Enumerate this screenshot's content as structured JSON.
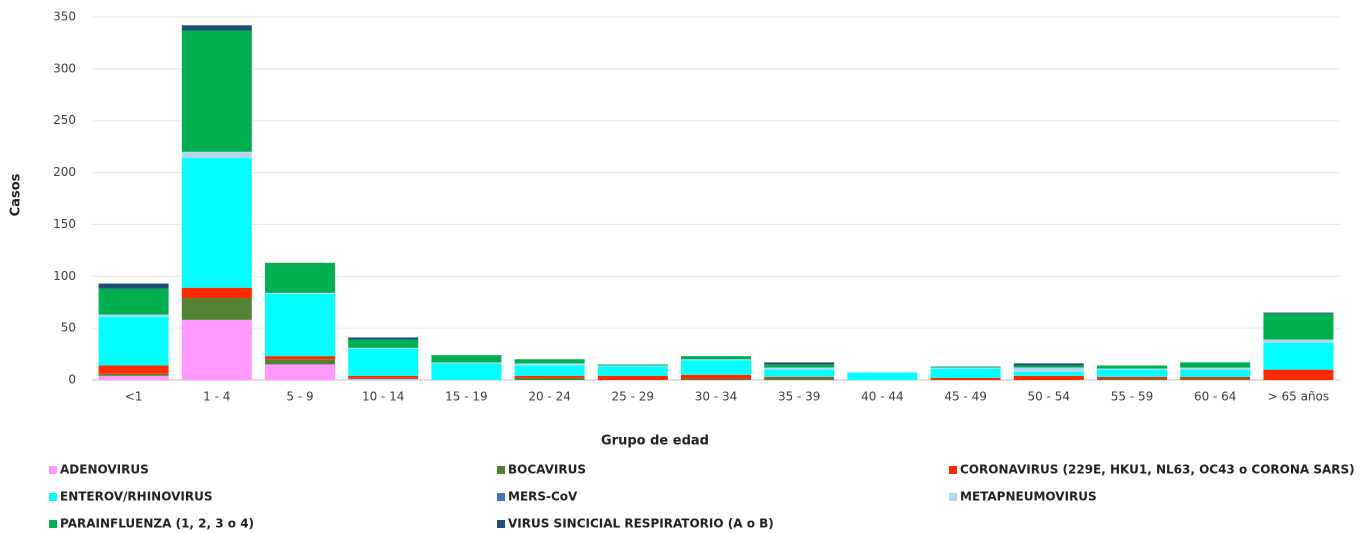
{
  "chart_data": {
    "type": "stacked_bar",
    "x_label": "Grupo de edad",
    "y_label": "Casos",
    "categories": [
      "<1",
      "1 - 4",
      "5 - 9",
      "10 - 14",
      "15 - 19",
      "20 - 24",
      "25 - 29",
      "30 - 34",
      "35 - 39",
      "40 - 44",
      "45 - 49",
      "50 - 54",
      "55 - 59",
      "60 - 64",
      "> 65 años"
    ],
    "ylim": [
      0,
      350
    ],
    "yticks": [
      0,
      50,
      100,
      150,
      200,
      250,
      300,
      350
    ],
    "grid": true,
    "series": [
      {
        "name": "ADENOVIRUS",
        "color": "#ff99ff",
        "values": [
          4,
          58,
          15,
          1,
          0,
          0,
          0,
          0,
          0,
          0,
          0,
          0,
          0,
          0,
          0
        ]
      },
      {
        "name": "BOCAVIRUS",
        "color": "#548235",
        "values": [
          2,
          21,
          5,
          1,
          0,
          2,
          0,
          1,
          2,
          0,
          0,
          0,
          1,
          1,
          0
        ]
      },
      {
        "name": "CORONAVIRUS (229E, HKU1, NL63, OC43 o CORONA SARS)",
        "color": "#ff2a00",
        "values": [
          8,
          10,
          3,
          2,
          0,
          2,
          4,
          4,
          1,
          0,
          2,
          4,
          2,
          2,
          10
        ]
      },
      {
        "name": "ENTEROV/RHINOVIRUS",
        "color": "#00ffff",
        "values": [
          47,
          125,
          60,
          26,
          16,
          10,
          9,
          14,
          7,
          7,
          9,
          4,
          7,
          7,
          26
        ]
      },
      {
        "name": "MERS-CoV",
        "color": "#4472c4",
        "values": [
          0,
          0,
          0,
          0,
          0,
          0,
          0,
          0,
          0,
          0,
          0,
          0,
          0,
          0,
          0
        ]
      },
      {
        "name": "METAPNEUMOVIRUS",
        "color": "#b4d7f0",
        "values": [
          2,
          6,
          1,
          1,
          1,
          2,
          1,
          1,
          2,
          1,
          1,
          4,
          1,
          2,
          3
        ]
      },
      {
        "name": "PARAINFLUENZA (1, 2, 3 o 4)",
        "color": "#00b050",
        "values": [
          25,
          117,
          29,
          8,
          7,
          4,
          1,
          3,
          3,
          0,
          1,
          2,
          3,
          5,
          25
        ]
      },
      {
        "name": "VIRUS SINCICIAL RESPIRATORIO (A o B)",
        "color": "#1f4e79",
        "values": [
          5,
          5,
          0,
          2,
          0,
          0,
          0,
          0,
          2,
          0,
          0,
          2,
          0,
          0,
          1
        ]
      }
    ]
  }
}
